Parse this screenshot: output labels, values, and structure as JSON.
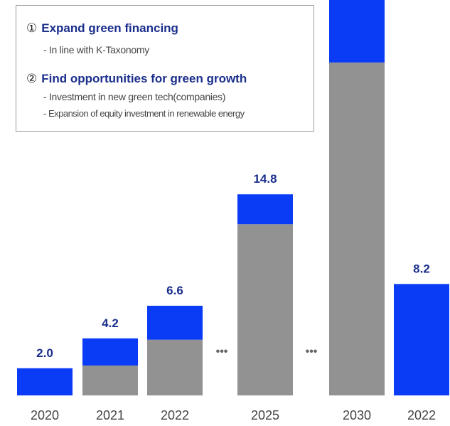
{
  "callout": {
    "items": [
      {
        "number": "①",
        "title": "Expand green financing",
        "details": [
          "- In line with K-Taxonomy"
        ]
      },
      {
        "number": "②",
        "title": "Find opportunities for green growth",
        "details": [
          "- Investment in new green tech(companies)",
          "- Expansion of equity investment in renewable energy"
        ]
      }
    ]
  },
  "chart_data": {
    "type": "bar",
    "stacked": true,
    "categories": [
      "2020",
      "2021",
      "2022",
      "2025",
      "2030",
      "2022"
    ],
    "series": [
      {
        "values": [
          0,
          2.2,
          4.1,
          12.6,
          24.5,
          0
        ],
        "color": "#929292"
      },
      {
        "values": [
          2.0,
          2.0,
          2.5,
          2.2,
          4.6,
          8.2
        ],
        "color": "#0a3cf5"
      }
    ],
    "data_labels": [
      "2.0",
      "4.2",
      "6.6",
      "14.8",
      "",
      "8.2"
    ],
    "gap_markers": [
      "•••",
      "•••"
    ],
    "ylim": [
      0,
      29.1
    ]
  }
}
